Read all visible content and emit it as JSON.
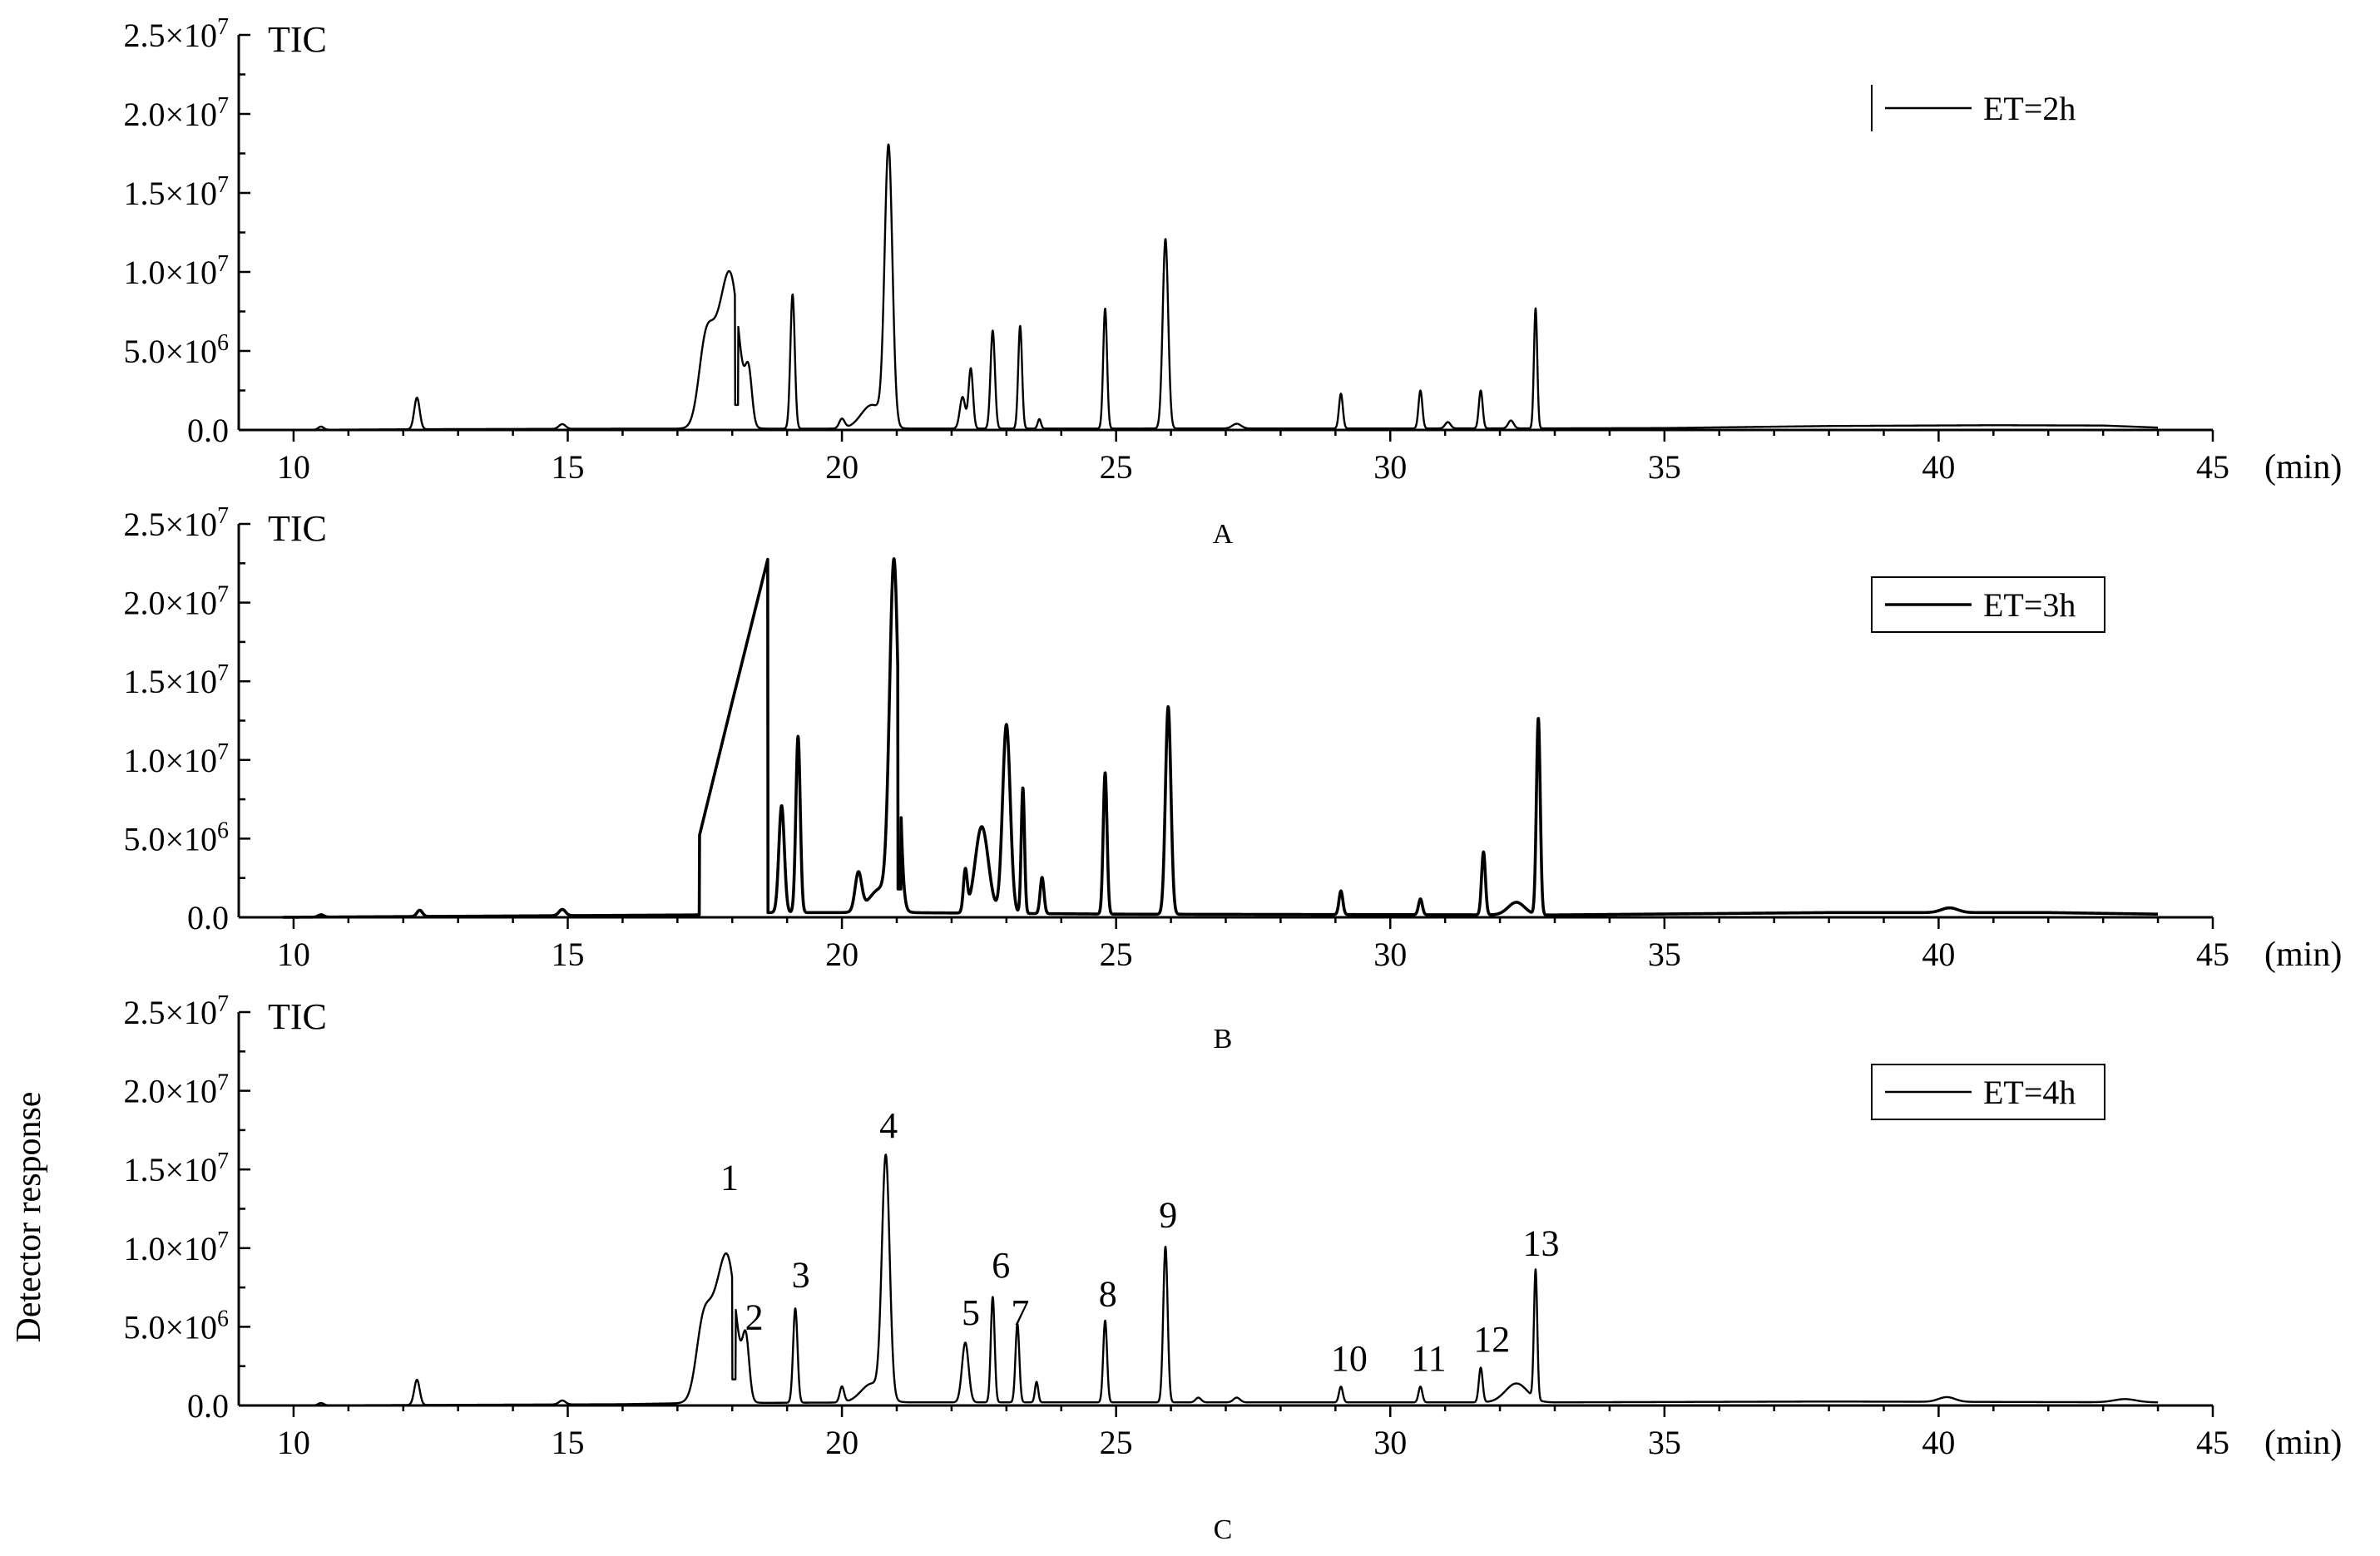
{
  "chart_data": [
    {
      "type": "line",
      "panel": "A",
      "corner_label": "TIC",
      "xlabel": "(min)",
      "ylabel": "",
      "xlim": [
        9,
        45
      ],
      "ylim": [
        0,
        25000000
      ],
      "xticks": [
        10,
        15,
        20,
        25,
        30,
        35,
        40,
        45
      ],
      "xtick_labels": [
        "10",
        "15",
        "20",
        "25",
        "30",
        "35",
        "40",
        "45"
      ],
      "ytick_labels": [
        {
          "base": "0.0",
          "exp": ""
        },
        {
          "base": "5.0×10",
          "exp": "6"
        },
        {
          "base": "1.0×10",
          "exp": "7"
        },
        {
          "base": "1.5×10",
          "exp": "7"
        },
        {
          "base": "2.0×10",
          "exp": "7"
        },
        {
          "base": "2.5×10",
          "exp": "7"
        }
      ],
      "legend": "top-right",
      "line_width": "thin",
      "series": [
        {
          "name": "ET=2h",
          "peaks": [
            [
              10.5,
              200000,
              0.05
            ],
            [
              12.25,
              2000000,
              0.05
            ],
            [
              14.9,
              300000,
              0.06
            ],
            [
              17.5,
              3500000,
              0.12
            ],
            [
              17.75,
              5500000,
              0.2
            ],
            [
              18.0,
              7000000,
              0.15
            ],
            [
              18.3,
              3000000,
              0.06
            ],
            [
              19.1,
              8500000,
              0.04
            ],
            [
              20.0,
              600000,
              0.05
            ],
            [
              20.55,
              1500000,
              0.2
            ],
            [
              20.85,
              17500000,
              0.07
            ],
            [
              22.2,
              2000000,
              0.05
            ],
            [
              22.35,
              3800000,
              0.04
            ],
            [
              22.75,
              6200000,
              0.04
            ],
            [
              23.25,
              6500000,
              0.035
            ],
            [
              23.6,
              600000,
              0.03
            ],
            [
              24.8,
              7600000,
              0.035
            ],
            [
              25.9,
              12000000,
              0.05
            ],
            [
              27.2,
              300000,
              0.08
            ],
            [
              29.1,
              2200000,
              0.035
            ],
            [
              30.55,
              2400000,
              0.035
            ],
            [
              31.05,
              400000,
              0.05
            ],
            [
              31.65,
              2400000,
              0.035
            ],
            [
              32.2,
              500000,
              0.05
            ],
            [
              32.65,
              7600000,
              0.03
            ]
          ],
          "drops": [
            18.05
          ],
          "baseline": [
            [
              9.8,
              0
            ],
            [
              12.5,
              50000
            ],
            [
              16.0,
              80000
            ],
            [
              32.8,
              100000
            ],
            [
              35.0,
              120000
            ],
            [
              38.0,
              250000
            ],
            [
              41.0,
              300000
            ],
            [
              43.0,
              280000
            ],
            [
              44.0,
              150000
            ]
          ],
          "x_range": [
            9.8,
            44.0
          ]
        }
      ]
    },
    {
      "type": "line",
      "panel": "B",
      "corner_label": "TIC",
      "xlabel": "(min)",
      "ylabel": "",
      "xlim": [
        9,
        45
      ],
      "ylim": [
        0,
        25000000
      ],
      "xticks": [
        10,
        15,
        20,
        25,
        30,
        35,
        40,
        45
      ],
      "xtick_labels": [
        "10",
        "15",
        "20",
        "25",
        "30",
        "35",
        "40",
        "45"
      ],
      "ytick_labels": [
        {
          "base": "0.0",
          "exp": ""
        },
        {
          "base": "5.0×10",
          "exp": "6"
        },
        {
          "base": "1.0×10",
          "exp": "7"
        },
        {
          "base": "1.5×10",
          "exp": "7"
        },
        {
          "base": "2.0×10",
          "exp": "7"
        },
        {
          "base": "2.5×10",
          "exp": "7"
        }
      ],
      "legend": "top-right",
      "line_width": "thick",
      "series": [
        {
          "name": "ET=3h",
          "ramps": [
            [
              17.4,
              18.65,
              5000000,
              22500000
            ]
          ],
          "peaks": [
            [
              10.5,
              150000,
              0.05
            ],
            [
              12.3,
              400000,
              0.05
            ],
            [
              14.9,
              400000,
              0.06
            ],
            [
              18.9,
              6800000,
              0.05
            ],
            [
              19.2,
              11200000,
              0.04
            ],
            [
              20.3,
              2400000,
              0.06
            ],
            [
              20.7,
              1500000,
              0.2
            ],
            [
              20.95,
              21800000,
              0.08
            ],
            [
              22.25,
              2600000,
              0.035
            ],
            [
              22.55,
              5500000,
              0.12
            ],
            [
              23.0,
              12000000,
              0.07
            ],
            [
              23.3,
              8000000,
              0.03
            ],
            [
              23.65,
              2300000,
              0.035
            ],
            [
              24.8,
              9000000,
              0.035
            ],
            [
              25.95,
              13200000,
              0.05
            ],
            [
              29.1,
              1500000,
              0.035
            ],
            [
              30.55,
              1000000,
              0.035
            ],
            [
              31.7,
              4000000,
              0.035
            ],
            [
              32.3,
              800000,
              0.15
            ],
            [
              32.7,
              12500000,
              0.035
            ],
            [
              40.2,
              300000,
              0.15
            ]
          ],
          "drops": [
            18.66,
            21.02
          ],
          "baseline": [
            [
              9.8,
              0
            ],
            [
              17.3,
              150000
            ],
            [
              18.0,
              300000
            ],
            [
              21.0,
              300000
            ],
            [
              25.0,
              200000
            ],
            [
              33.0,
              150000
            ],
            [
              38.0,
              300000
            ],
            [
              42.0,
              300000
            ],
            [
              44.0,
              200000
            ]
          ],
          "x_range": [
            9.8,
            44.0
          ]
        }
      ]
    },
    {
      "type": "line",
      "panel": "C",
      "corner_label": "TIC",
      "xlabel": "(min)",
      "ylabel": "Detector response",
      "xlim": [
        9,
        45
      ],
      "ylim": [
        0,
        25000000
      ],
      "xticks": [
        10,
        15,
        20,
        25,
        30,
        35,
        40,
        45
      ],
      "xtick_labels": [
        "10",
        "15",
        "20",
        "25",
        "30",
        "35",
        "40",
        "45"
      ],
      "ytick_labels": [
        {
          "base": "0.0",
          "exp": ""
        },
        {
          "base": "5.0×10",
          "exp": "6"
        },
        {
          "base": "1.0×10",
          "exp": "7"
        },
        {
          "base": "1.5×10",
          "exp": "7"
        },
        {
          "base": "2.0×10",
          "exp": "7"
        },
        {
          "base": "2.5×10",
          "exp": "7"
        }
      ],
      "legend": "top-right",
      "line_width": "thin",
      "series": [
        {
          "name": "ET=4h",
          "peaks": [
            [
              10.5,
              150000,
              0.05
            ],
            [
              12.25,
              1600000,
              0.05
            ],
            [
              14.9,
              250000,
              0.06
            ],
            [
              17.45,
              3000000,
              0.12
            ],
            [
              17.7,
              5500000,
              0.2
            ],
            [
              17.95,
              6500000,
              0.15
            ],
            [
              18.25,
              3500000,
              0.06
            ],
            [
              19.15,
              6000000,
              0.04
            ],
            [
              20.0,
              1000000,
              0.04
            ],
            [
              20.55,
              1200000,
              0.2
            ],
            [
              20.8,
              15200000,
              0.07
            ],
            [
              22.25,
              3800000,
              0.06
            ],
            [
              22.75,
              6700000,
              0.035
            ],
            [
              23.2,
              5000000,
              0.035
            ],
            [
              23.55,
              1300000,
              0.03
            ],
            [
              24.8,
              5200000,
              0.035
            ],
            [
              25.9,
              9900000,
              0.04
            ],
            [
              26.5,
              300000,
              0.05
            ],
            [
              27.2,
              300000,
              0.06
            ],
            [
              29.1,
              1000000,
              0.035
            ],
            [
              30.55,
              1000000,
              0.035
            ],
            [
              31.65,
              2200000,
              0.035
            ],
            [
              32.3,
              1200000,
              0.2
            ],
            [
              32.65,
              8200000,
              0.03
            ],
            [
              40.15,
              300000,
              0.15
            ],
            [
              43.4,
              200000,
              0.2
            ]
          ],
          "drops": [
            18.0
          ],
          "baseline": [
            [
              9.8,
              0
            ],
            [
              16.0,
              80000
            ],
            [
              17.2,
              150000
            ],
            [
              21.0,
              200000
            ],
            [
              30.0,
              200000
            ],
            [
              33.0,
              200000
            ],
            [
              38.0,
              250000
            ],
            [
              44.0,
              200000
            ]
          ],
          "x_range": [
            9.8,
            44.0
          ]
        }
      ],
      "annotations": [
        {
          "text": "1",
          "x": 17.95,
          "y": 13200000
        },
        {
          "text": "2",
          "x": 18.4,
          "y": 4300000
        },
        {
          "text": "3",
          "x": 19.25,
          "y": 7000000
        },
        {
          "text": "4",
          "x": 20.85,
          "y": 16500000
        },
        {
          "text": "5",
          "x": 22.35,
          "y": 4600000
        },
        {
          "text": "6",
          "x": 22.9,
          "y": 7600000
        },
        {
          "text": "7",
          "x": 23.25,
          "y": 4600000
        },
        {
          "text": "8",
          "x": 24.85,
          "y": 5800000
        },
        {
          "text": "9",
          "x": 25.95,
          "y": 10800000
        },
        {
          "text": "10",
          "x": 29.25,
          "y": 1700000
        },
        {
          "text": "11",
          "x": 30.7,
          "y": 1700000
        },
        {
          "text": "12",
          "x": 31.85,
          "y": 2900000
        },
        {
          "text": "13",
          "x": 32.75,
          "y": 9000000
        }
      ]
    }
  ]
}
